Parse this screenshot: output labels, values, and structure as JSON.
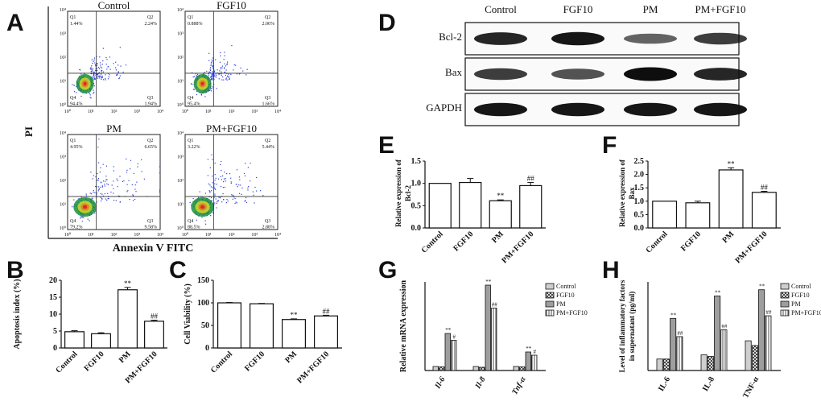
{
  "panels": {
    "A": "A",
    "B": "B",
    "C": "C",
    "D": "D",
    "E": "E",
    "F": "F",
    "G": "G",
    "H": "H"
  },
  "flow": {
    "ylabel": "PI",
    "xlabel": "Annexin V FITC",
    "ticks": [
      "10⁰",
      "10¹",
      "10²",
      "10³",
      "10⁴"
    ],
    "plots": [
      {
        "title": "Control",
        "q1": "1.44%",
        "q2": "2.24%",
        "q3": "1.94%",
        "q4": "94.4%"
      },
      {
        "title": "FGF10",
        "q1": "0.888%",
        "q2": "2.06%",
        "q3": "1.66%",
        "q4": "95.4%"
      },
      {
        "title": "PM",
        "q1": "4.95%",
        "q2": "6.65%",
        "q3": "9.58%",
        "q4": "79.2%"
      },
      {
        "title": "PM+FGF10",
        "q1": "3.22%",
        "q2": "5.44%",
        "q3": "2.88%",
        "q4": "88.5%"
      }
    ]
  },
  "western": {
    "lanes": [
      "Control",
      "FGF10",
      "PM",
      "PM+FGF10"
    ],
    "rows": [
      {
        "label": "Bcl-2",
        "intensity": [
          0.85,
          0.95,
          0.45,
          0.7
        ]
      },
      {
        "label": "Bax",
        "intensity": [
          0.7,
          0.55,
          1.0,
          0.85
        ]
      },
      {
        "label": "GAPDH",
        "intensity": [
          0.95,
          0.95,
          0.95,
          0.95
        ]
      }
    ]
  },
  "chart_data": [
    {
      "panel": "B",
      "type": "bar",
      "ylabel": "Apoptosis index (%)",
      "categories": [
        "Control",
        "FGF10",
        "PM",
        "PM+FGF10"
      ],
      "values": [
        4.8,
        4.2,
        17.2,
        7.9
      ],
      "errors": [
        0.3,
        0.3,
        0.7,
        0.3
      ],
      "ylim": [
        0,
        20
      ],
      "yticks": [
        0,
        5,
        10,
        15,
        20
      ],
      "sig": [
        "",
        "",
        "**",
        "##"
      ]
    },
    {
      "panel": "C",
      "type": "bar",
      "ylabel": "Cell Viability (%)",
      "categories": [
        "Control",
        "FGF10",
        "PM",
        "PM+FGF10"
      ],
      "values": [
        100,
        98,
        63,
        71
      ],
      "errors": [
        0.8,
        0.8,
        1.5,
        1.5
      ],
      "ylim": [
        0,
        150
      ],
      "yticks": [
        0,
        50,
        100,
        150
      ],
      "sig": [
        "",
        "",
        "**",
        "##"
      ]
    },
    {
      "panel": "E",
      "type": "bar",
      "ylabel": "Relative expression of Bcl-2",
      "categories": [
        "Control",
        "FGF10",
        "PM",
        "PM+FGF10"
      ],
      "values": [
        1.0,
        1.02,
        0.61,
        0.95
      ],
      "errors": [
        0,
        0.09,
        0.02,
        0.07
      ],
      "ylim": [
        0,
        1.5
      ],
      "yticks": [
        "0.0",
        "0.5",
        "1.0",
        "1.5"
      ],
      "sig": [
        "",
        "",
        "**",
        "##"
      ]
    },
    {
      "panel": "F",
      "type": "bar",
      "ylabel": "Relative expression of Bax",
      "categories": [
        "Control",
        "FGF10",
        "PM",
        "PM+FGF10"
      ],
      "values": [
        1.0,
        0.94,
        2.17,
        1.33
      ],
      "errors": [
        0,
        0.06,
        0.08,
        0.04
      ],
      "ylim": [
        0,
        2.5
      ],
      "yticks": [
        "0.0",
        "0.5",
        "1.0",
        "1.5",
        "2.0",
        "2.5"
      ],
      "sig": [
        "",
        "",
        "**",
        "##"
      ]
    },
    {
      "panel": "G",
      "type": "bar",
      "ylabel": "Relative mRNA expression",
      "groups": [
        "Il-6",
        "Il-8",
        "Tnf-α"
      ],
      "series": [
        {
          "name": "Control",
          "values": [
            1,
            1,
            1
          ]
        },
        {
          "name": "FGF10",
          "values": [
            0.9,
            0.8,
            0.9
          ]
        },
        {
          "name": "PM",
          "values": [
            9.2,
            21.2,
            4.6
          ]
        },
        {
          "name": "PM+FGF10",
          "values": [
            7.5,
            15.5,
            3.8
          ]
        }
      ],
      "ylim": [
        0,
        22
      ],
      "sig": [
        [
          "",
          "",
          "**",
          "#"
        ],
        [
          "",
          "",
          "**",
          "##"
        ],
        [
          "",
          "",
          "**",
          "#"
        ]
      ]
    },
    {
      "panel": "H",
      "type": "bar",
      "ylabel": "Level of inflammatory factors in supernatant (pg/ml)",
      "groups": [
        "IL-6",
        "IL-8",
        "TNF-α"
      ],
      "series": [
        {
          "name": "Control",
          "values": [
            22,
            30,
            57
          ]
        },
        {
          "name": "FGF10",
          "values": [
            22,
            27,
            48
          ]
        },
        {
          "name": "PM",
          "values": [
            100,
            143,
            155
          ]
        },
        {
          "name": "PM+FGF10",
          "values": [
            65,
            78,
            105
          ]
        }
      ],
      "ylim": [
        0,
        170
      ],
      "sig": [
        [
          "",
          "",
          "**",
          "##"
        ],
        [
          "",
          "",
          "**",
          "##"
        ],
        [
          "",
          "",
          "**",
          "##"
        ]
      ]
    }
  ]
}
